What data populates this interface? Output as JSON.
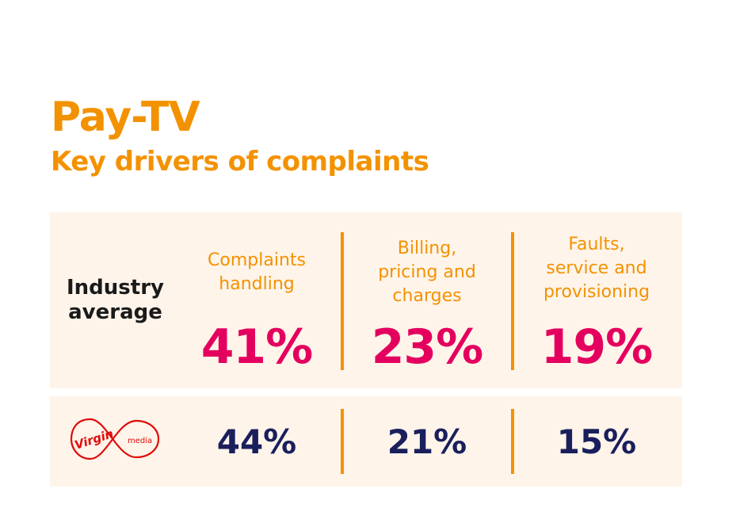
{
  "title": "Pay-TV",
  "subtitle": "Key drivers of complaints",
  "colors": {
    "accent": "#f39200",
    "industry_value": "#e4005e",
    "provider_value": "#1a1f5c",
    "panel_bg": "#fef4ea",
    "logo_red": "#e10a0a"
  },
  "chart_data": {
    "type": "table",
    "categories": [
      "Complaints handling",
      "Billing, pricing and charges",
      "Faults, service and provisioning"
    ],
    "category_lines": [
      [
        "Complaints",
        "handling"
      ],
      [
        "Billing,",
        "pricing and",
        "charges"
      ],
      [
        "Faults,",
        "service and",
        "provisioning"
      ]
    ],
    "series": [
      {
        "name": "Industry average",
        "label_lines": [
          "Industry",
          "average"
        ],
        "values": [
          41,
          23,
          19
        ],
        "display": [
          "41%",
          "23%",
          "19%"
        ]
      },
      {
        "name": "Virgin media",
        "logo_text": [
          "Virgin",
          "media"
        ],
        "values": [
          44,
          21,
          15
        ],
        "display": [
          "44%",
          "21%",
          "15%"
        ]
      }
    ]
  }
}
